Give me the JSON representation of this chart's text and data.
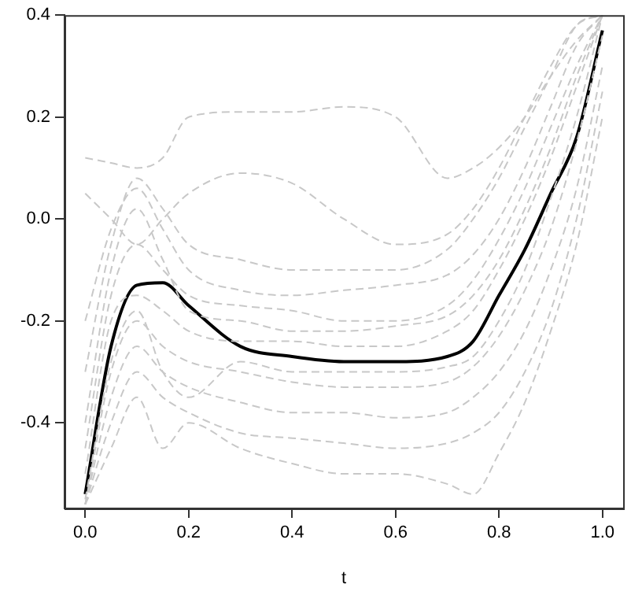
{
  "chart_data": {
    "type": "line",
    "xlabel": "t",
    "x": [
      0,
      0.05,
      0.1,
      0.15,
      0.2,
      0.3,
      0.4,
      0.5,
      0.6,
      0.7,
      0.75,
      0.8,
      0.85,
      0.9,
      0.95,
      1.0
    ],
    "xlim": [
      -0.04,
      1.04
    ],
    "ylim": [
      -0.568,
      0.4
    ],
    "xticks": [
      {
        "value": 0,
        "label": "0.0"
      },
      {
        "value": 0.2,
        "label": "0.2"
      },
      {
        "value": 0.4,
        "label": "0.4"
      },
      {
        "value": 0.6,
        "label": "0.6"
      },
      {
        "value": 0.8,
        "label": "0.8"
      },
      {
        "value": 1,
        "label": "1.0"
      }
    ],
    "yticks": [
      {
        "value": -0.4,
        "label": "-0.4"
      },
      {
        "value": -0.2,
        "label": "-0.2"
      },
      {
        "value": 0,
        "label": "0.0"
      },
      {
        "value": 0.2,
        "label": "0.2"
      },
      {
        "value": 0.4,
        "label": "0.4"
      }
    ],
    "grid": false,
    "legend": false,
    "marker": "none",
    "series": [
      {
        "color": "#c8c8c8",
        "line_style": "dashed",
        "values": [
          0.12,
          0.11,
          0.1,
          0.12,
          0.2,
          0.21,
          0.21,
          0.22,
          0.2,
          0.08,
          0.1,
          0.14,
          0.2,
          0.28,
          0.35,
          0.4
        ]
      },
      {
        "color": "#c8c8c8",
        "line_style": "dashed",
        "values": [
          0.05,
          0.0,
          -0.05,
          0.0,
          0.05,
          0.09,
          0.07,
          0.0,
          -0.05,
          -0.03,
          0.02,
          0.1,
          0.2,
          0.3,
          0.38,
          0.4
        ]
      },
      {
        "color": "#c8c8c8",
        "line_style": "dashed",
        "values": [
          -0.3,
          -0.05,
          0.08,
          0.02,
          -0.05,
          -0.08,
          -0.1,
          -0.1,
          -0.1,
          -0.06,
          0.0,
          0.08,
          0.18,
          0.28,
          0.38,
          0.4
        ]
      },
      {
        "color": "#c8c8c8",
        "line_style": "dashed",
        "values": [
          -0.45,
          -0.15,
          -0.05,
          -0.1,
          -0.15,
          -0.17,
          -0.18,
          -0.2,
          -0.2,
          -0.17,
          -0.12,
          -0.04,
          0.06,
          0.18,
          0.3,
          0.4
        ]
      },
      {
        "color": "#c8c8c8",
        "line_style": "dashed",
        "values": [
          -0.5,
          -0.2,
          -0.15,
          -0.18,
          -0.22,
          -0.24,
          -0.24,
          -0.25,
          -0.25,
          -0.22,
          -0.18,
          -0.1,
          0.0,
          0.12,
          0.26,
          0.4
        ]
      },
      {
        "color": "#c8c8c8",
        "line_style": "dashed",
        "values": [
          -0.56,
          -0.3,
          -0.2,
          -0.25,
          -0.28,
          -0.3,
          -0.32,
          -0.33,
          -0.33,
          -0.32,
          -0.29,
          -0.23,
          -0.14,
          -0.02,
          0.15,
          0.36
        ]
      },
      {
        "color": "#c8c8c8",
        "line_style": "dashed",
        "values": [
          -0.56,
          -0.35,
          -0.25,
          -0.3,
          -0.33,
          -0.36,
          -0.38,
          -0.38,
          -0.39,
          -0.38,
          -0.35,
          -0.3,
          -0.22,
          -0.1,
          0.06,
          0.3
        ]
      },
      {
        "color": "#c8c8c8",
        "line_style": "dashed",
        "values": [
          -0.56,
          -0.4,
          -0.3,
          -0.35,
          -0.38,
          -0.42,
          -0.43,
          -0.44,
          -0.45,
          -0.44,
          -0.42,
          -0.38,
          -0.3,
          -0.18,
          0.0,
          0.25
        ]
      },
      {
        "color": "#c8c8c8",
        "line_style": "dashed",
        "values": [
          -0.56,
          -0.45,
          -0.35,
          -0.45,
          -0.4,
          -0.45,
          -0.48,
          -0.5,
          -0.5,
          -0.52,
          -0.54,
          -0.46,
          -0.36,
          -0.22,
          -0.05,
          0.2
        ]
      },
      {
        "color": "#c8c8c8",
        "line_style": "dashed",
        "values": [
          -0.4,
          -0.1,
          0.02,
          -0.08,
          -0.18,
          -0.2,
          -0.22,
          -0.22,
          -0.21,
          -0.19,
          -0.15,
          -0.08,
          0.02,
          0.14,
          0.28,
          0.4
        ]
      },
      {
        "color": "#c8c8c8",
        "line_style": "dashed",
        "values": [
          -0.55,
          -0.28,
          -0.18,
          -0.3,
          -0.35,
          -0.28,
          -0.3,
          -0.3,
          -0.3,
          -0.29,
          -0.27,
          -0.2,
          -0.1,
          0.04,
          0.2,
          0.4
        ]
      },
      {
        "color": "#c8c8c8",
        "line_style": "dashed",
        "values": [
          -0.2,
          -0.02,
          0.06,
          -0.02,
          -0.1,
          -0.14,
          -0.15,
          -0.14,
          -0.13,
          -0.11,
          -0.07,
          0.0,
          0.1,
          0.22,
          0.34,
          0.4
        ]
      },
      {
        "color": "#000000",
        "line_style": "solid",
        "values": [
          -0.54,
          -0.25,
          -0.13,
          -0.125,
          -0.17,
          -0.25,
          -0.27,
          -0.28,
          -0.28,
          -0.27,
          -0.24,
          -0.15,
          -0.06,
          0.05,
          0.16,
          0.37
        ]
      }
    ]
  }
}
